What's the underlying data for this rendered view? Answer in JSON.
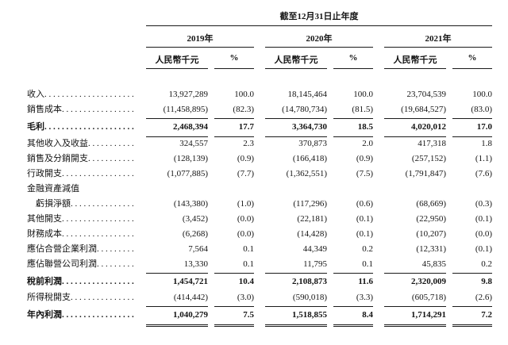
{
  "table": {
    "period_header": "截至12月31日止年度",
    "years": [
      "2019年",
      "2020年",
      "2021年"
    ],
    "amount_unit_label": "人民幣千元",
    "percent_label": "%",
    "rows": [
      {
        "label": "收入",
        "indent": 0,
        "leader": true,
        "bold": false,
        "rule": "none",
        "values": [
          "13,927,289",
          "100.0",
          "18,145,464",
          "100.0",
          "23,704,539",
          "100.0"
        ]
      },
      {
        "label": "銷售成本",
        "indent": 0,
        "leader": true,
        "bold": false,
        "rule": "single",
        "values": [
          "(11,458,895)",
          "(82.3)",
          "(14,780,734)",
          "(81.5)",
          "(19,684,527)",
          "(83.0)"
        ]
      },
      {
        "label": "毛利",
        "indent": 0,
        "leader": true,
        "bold": true,
        "rule": "single",
        "values": [
          "2,468,394",
          "17.7",
          "3,364,730",
          "18.5",
          "4,020,012",
          "17.0"
        ]
      },
      {
        "label": "其他收入及收益",
        "indent": 0,
        "leader": true,
        "bold": false,
        "rule": "none",
        "values": [
          "324,557",
          "2.3",
          "370,873",
          "2.0",
          "417,318",
          "1.8"
        ]
      },
      {
        "label": "銷售及分銷開支",
        "indent": 0,
        "leader": true,
        "bold": false,
        "rule": "none",
        "values": [
          "(128,139)",
          "(0.9)",
          "(166,418)",
          "(0.9)",
          "(257,152)",
          "(1.1)"
        ]
      },
      {
        "label": "行政開支",
        "indent": 0,
        "leader": true,
        "bold": false,
        "rule": "none",
        "values": [
          "(1,077,885)",
          "(7.7)",
          "(1,362,551)",
          "(7.5)",
          "(1,791,847)",
          "(7.6)"
        ]
      },
      {
        "label": "金融資產減值",
        "indent": 0,
        "leader": false,
        "bold": false,
        "rule": "none",
        "values": [
          "",
          "",
          "",
          "",
          "",
          ""
        ]
      },
      {
        "label": "虧損淨額",
        "indent": 1,
        "leader": true,
        "bold": false,
        "rule": "none",
        "values": [
          "(143,380)",
          "(1.0)",
          "(117,296)",
          "(0.6)",
          "(68,669)",
          "(0.3)"
        ]
      },
      {
        "label": "其他開支",
        "indent": 0,
        "leader": true,
        "bold": false,
        "rule": "none",
        "values": [
          "(3,452)",
          "(0.0)",
          "(22,181)",
          "(0.1)",
          "(22,950)",
          "(0.1)"
        ]
      },
      {
        "label": "財務成本",
        "indent": 0,
        "leader": true,
        "bold": false,
        "rule": "none",
        "values": [
          "(6,268)",
          "(0.0)",
          "(14,428)",
          "(0.1)",
          "(10,207)",
          "(0.0)"
        ]
      },
      {
        "label": "應佔合營企業利潤",
        "indent": 0,
        "leader": true,
        "bold": false,
        "rule": "none",
        "values": [
          "7,564",
          "0.1",
          "44,349",
          "0.2",
          "(12,331)",
          "(0.1)"
        ]
      },
      {
        "label": "應佔聯營公司利潤",
        "indent": 0,
        "leader": true,
        "bold": false,
        "rule": "single",
        "values": [
          "13,330",
          "0.1",
          "11,795",
          "0.1",
          "45,835",
          "0.2"
        ]
      },
      {
        "label": "稅前利潤",
        "indent": 0,
        "leader": true,
        "bold": true,
        "rule": "none",
        "values": [
          "1,454,721",
          "10.4",
          "2,108,873",
          "11.6",
          "2,320,009",
          "9.8"
        ]
      },
      {
        "label": "所得稅開支",
        "indent": 0,
        "leader": true,
        "bold": false,
        "rule": "single",
        "values": [
          "(414,442)",
          "(3.0)",
          "(590,018)",
          "(3.3)",
          "(605,718)",
          "(2.6)"
        ]
      },
      {
        "label": "年內利潤",
        "indent": 0,
        "leader": true,
        "bold": true,
        "rule": "double",
        "values": [
          "1,040,279",
          "7.5",
          "1,518,855",
          "8.4",
          "1,714,291",
          "7.2"
        ]
      }
    ]
  }
}
